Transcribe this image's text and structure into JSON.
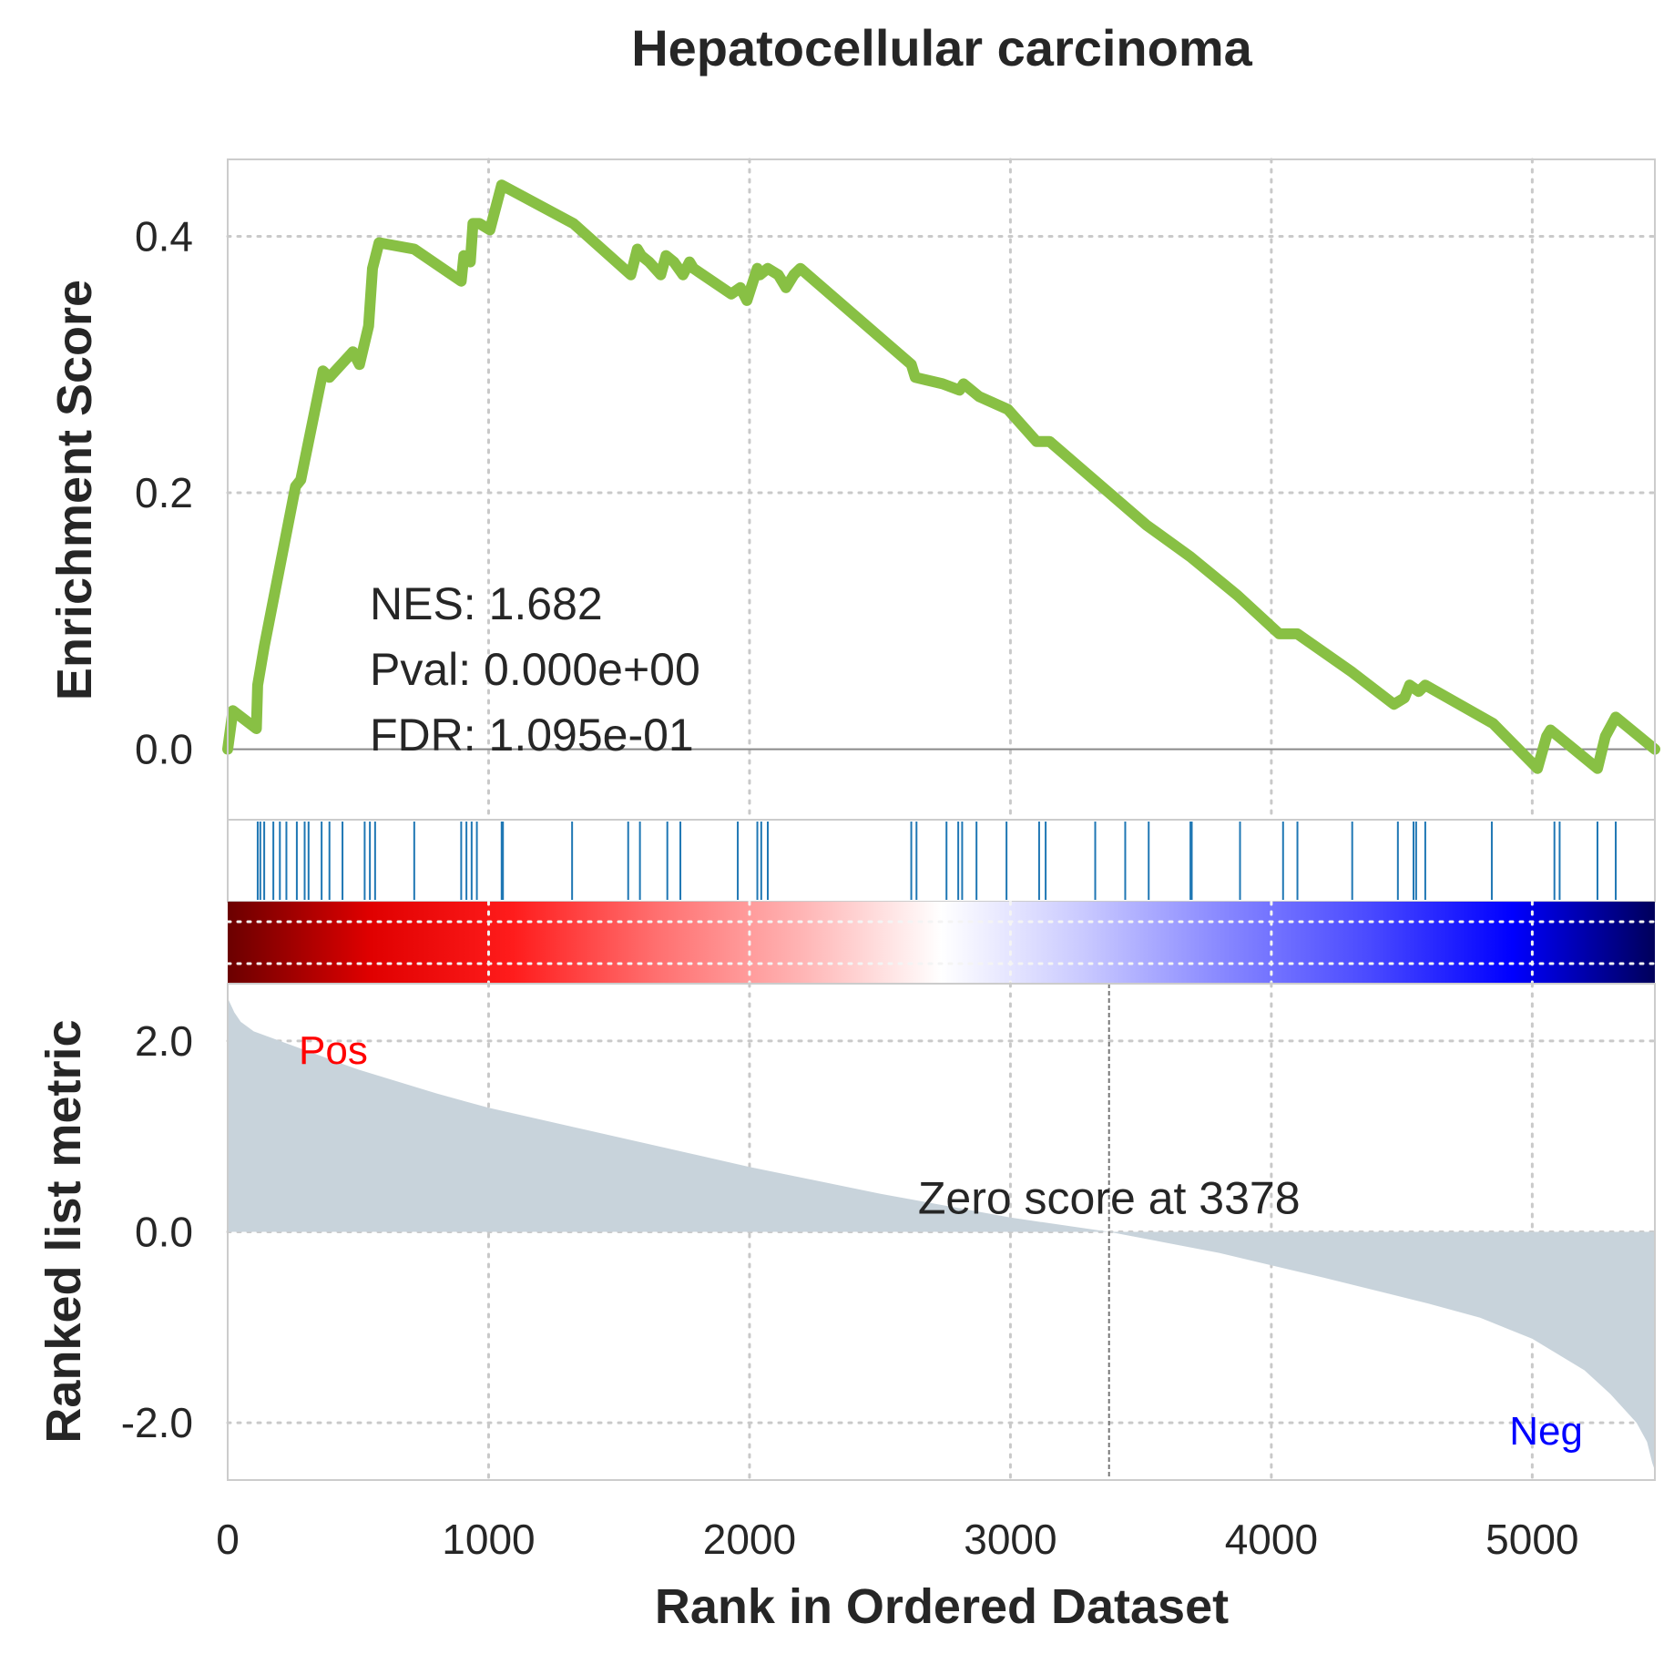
{
  "chart_data": {
    "type": "line",
    "title": "Hepatocellular carcinoma",
    "xlabel": "Rank in Ordered Dataset",
    "xlim": [
      0,
      5470
    ],
    "x_ticks": [
      {
        "value": 0,
        "label": "0"
      },
      {
        "value": 1000,
        "label": "1000"
      },
      {
        "value": 2000,
        "label": "2000"
      },
      {
        "value": 3000,
        "label": "3000"
      },
      {
        "value": 4000,
        "label": "4000"
      },
      {
        "value": 5000,
        "label": "5000"
      }
    ],
    "grid": true,
    "enrichment_panel": {
      "ylabel": "Enrichment Score",
      "ylim": [
        -0.055,
        0.46
      ],
      "y_ticks": [
        {
          "value": 0.0,
          "label": "0.0"
        },
        {
          "value": 0.2,
          "label": "0.2"
        },
        {
          "value": 0.4,
          "label": "0.4"
        }
      ],
      "line_color": "#88c044",
      "series": [
        {
          "x": [
            0,
            20,
            110,
            115,
            140,
            260,
            280,
            365,
            390,
            480,
            505,
            540,
            555,
            580,
            715,
            895,
            905,
            930,
            940,
            965,
            1005,
            1050,
            1325,
            1545,
            1570,
            1585,
            1615,
            1660,
            1680,
            1710,
            1745,
            1770,
            1785,
            1930,
            1965,
            1990,
            2030,
            2040,
            2070,
            2110,
            2140,
            2170,
            2195,
            2620,
            2635,
            2740,
            2805,
            2820,
            2880,
            2990,
            3100,
            3150,
            3520,
            3690,
            3870,
            4030,
            4100,
            4310,
            4470,
            4510,
            4530,
            4565,
            4590,
            4850,
            5020,
            5055,
            5070,
            5100,
            5250,
            5280,
            5320,
            5470
          ],
          "y": [
            0.0,
            0.03,
            0.016,
            0.05,
            0.08,
            0.205,
            0.21,
            0.295,
            0.29,
            0.31,
            0.3,
            0.33,
            0.375,
            0.395,
            0.39,
            0.365,
            0.385,
            0.38,
            0.41,
            0.41,
            0.405,
            0.44,
            0.41,
            0.37,
            0.39,
            0.385,
            0.38,
            0.37,
            0.385,
            0.38,
            0.37,
            0.38,
            0.375,
            0.355,
            0.36,
            0.35,
            0.375,
            0.37,
            0.375,
            0.37,
            0.36,
            0.37,
            0.375,
            0.3,
            0.29,
            0.285,
            0.28,
            0.285,
            0.275,
            0.265,
            0.24,
            0.24,
            0.175,
            0.15,
            0.12,
            0.09,
            0.09,
            0.06,
            0.035,
            0.04,
            0.05,
            0.045,
            0.05,
            0.02,
            -0.015,
            0.01,
            0.015,
            0.01,
            -0.015,
            0.01,
            0.025,
            0.0
          ]
        }
      ],
      "stats": [
        {
          "label": "NES: 1.682"
        },
        {
          "label": "Pval: 0.000e+00"
        },
        {
          "label": "FDR: 1.095e-01"
        }
      ]
    },
    "hit_positions": [
      115,
      125,
      140,
      175,
      200,
      225,
      265,
      295,
      310,
      360,
      390,
      440,
      525,
      545,
      565,
      715,
      895,
      915,
      935,
      955,
      1050,
      1055,
      1320,
      1535,
      1580,
      1685,
      1735,
      1955,
      2030,
      2045,
      2070,
      2620,
      2640,
      2755,
      2800,
      2815,
      2870,
      2985,
      3110,
      3135,
      3325,
      3440,
      3530,
      3690,
      3695,
      3880,
      4045,
      4100,
      4310,
      4485,
      4545,
      4555,
      4590,
      4845,
      5085,
      5105,
      5250,
      5320
    ],
    "colorbar": {
      "stops": [
        "#6b0000",
        "#e00000",
        "#ff1c1c",
        "#ff6f6f",
        "#ffb3b3",
        "#ffffff",
        "#c9c9ff",
        "#8686ff",
        "#4a4aff",
        "#0000ff",
        "#00005a"
      ]
    },
    "ranked_panel": {
      "ylabel": "Ranked list metric",
      "ylim": [
        -2.6,
        2.6
      ],
      "y_ticks": [
        {
          "value": 2.0,
          "label": "2.0"
        },
        {
          "value": 0.0,
          "label": "0.0"
        },
        {
          "value": -2.0,
          "label": "-2.0"
        }
      ],
      "fill_color": "#c8d3db",
      "series": [
        {
          "x": [
            0,
            25,
            50,
            100,
            200,
            300,
            500,
            800,
            1000,
            1500,
            2000,
            2500,
            3000,
            3378,
            3800,
            4200,
            4600,
            4800,
            5000,
            5200,
            5300,
            5400,
            5440,
            5460,
            5470
          ],
          "y": [
            2.45,
            2.3,
            2.2,
            2.1,
            2.0,
            1.9,
            1.7,
            1.45,
            1.3,
            0.99,
            0.68,
            0.4,
            0.15,
            0.0,
            -0.22,
            -0.48,
            -0.75,
            -0.9,
            -1.12,
            -1.45,
            -1.7,
            -2.0,
            -2.2,
            -2.42,
            -2.5
          ]
        }
      ],
      "zero_score": {
        "rank": 3378,
        "label": "Zero score at 3378"
      },
      "pos_label": {
        "text": "Pos",
        "color": "#ff0000"
      },
      "neg_label": {
        "text": "Neg",
        "color": "#0000ff"
      }
    }
  }
}
